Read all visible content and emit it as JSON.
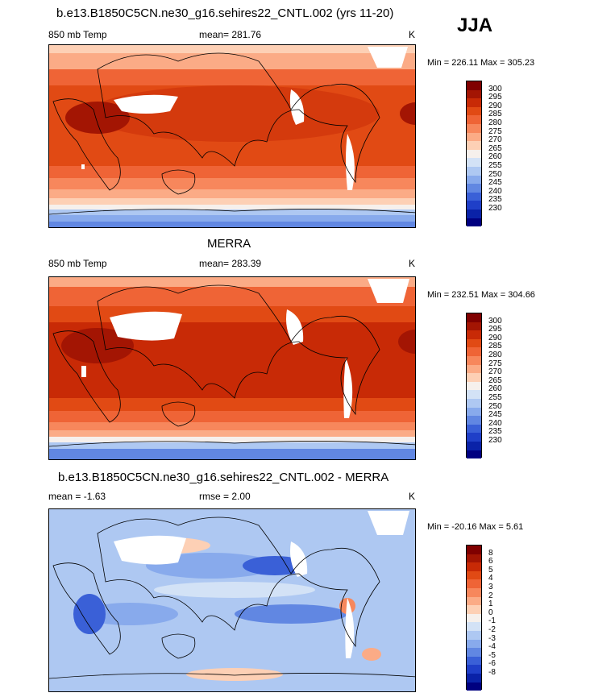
{
  "season": "JJA",
  "panels": [
    {
      "title": "b.e13.B1850C5CN.ne30_g16.sehires22_CNTL.002 (yrs 11-20)",
      "variable": "850 mb Temp",
      "stat_text": "mean= 281.76",
      "units": "K",
      "minmax": "Min = 226.11 Max = 305.23",
      "colorbar_labels": [
        "300",
        "295",
        "290",
        "285",
        "280",
        "275",
        "270",
        "265",
        "260",
        "255",
        "250",
        "245",
        "240",
        "235",
        "230"
      ],
      "colors": [
        "#800000",
        "#a31503",
        "#c82a06",
        "#e14a14",
        "#ef6436",
        "#f7875c",
        "#fbab86",
        "#fdd0b5",
        "#f6f0ec",
        "#d3e2f6",
        "#aec8f2",
        "#88aaec",
        "#6187e2",
        "#3a60d7",
        "#1f3fc8",
        "#0a22a8",
        "#000080"
      ]
    },
    {
      "title": "MERRA",
      "variable": "850 mb Temp",
      "stat_text": "mean= 283.39",
      "units": "K",
      "minmax": "Min = 232.51 Max = 304.66",
      "colorbar_labels": [
        "300",
        "295",
        "290",
        "285",
        "280",
        "275",
        "270",
        "265",
        "260",
        "255",
        "250",
        "245",
        "240",
        "235",
        "230"
      ],
      "colors": [
        "#800000",
        "#a31503",
        "#c82a06",
        "#e14a14",
        "#ef6436",
        "#f7875c",
        "#fbab86",
        "#fdd0b5",
        "#f6f0ec",
        "#d3e2f6",
        "#aec8f2",
        "#88aaec",
        "#6187e2",
        "#3a60d7",
        "#1f3fc8",
        "#0a22a8",
        "#000080"
      ]
    },
    {
      "title": "b.e13.B1850C5CN.ne30_g16.sehires22_CNTL.002 - MERRA",
      "variable": "mean =  -1.63",
      "stat_text": "rmse =   2.00",
      "units": "K",
      "minmax": "Min = -20.16 Max =   5.61",
      "colorbar_labels": [
        "8",
        "6",
        "5",
        "4",
        "3",
        "2",
        "1",
        "0",
        "-1",
        "-2",
        "-3",
        "-4",
        "-5",
        "-6",
        "-8"
      ],
      "colors": [
        "#800000",
        "#a31503",
        "#c82a06",
        "#e14a14",
        "#ef6436",
        "#f7875c",
        "#fbab86",
        "#fdd0b5",
        "#f6f0ec",
        "#d3e2f6",
        "#aec8f2",
        "#88aaec",
        "#6187e2",
        "#3a60d7",
        "#1f3fc8",
        "#0a22a8",
        "#000080"
      ]
    }
  ]
}
